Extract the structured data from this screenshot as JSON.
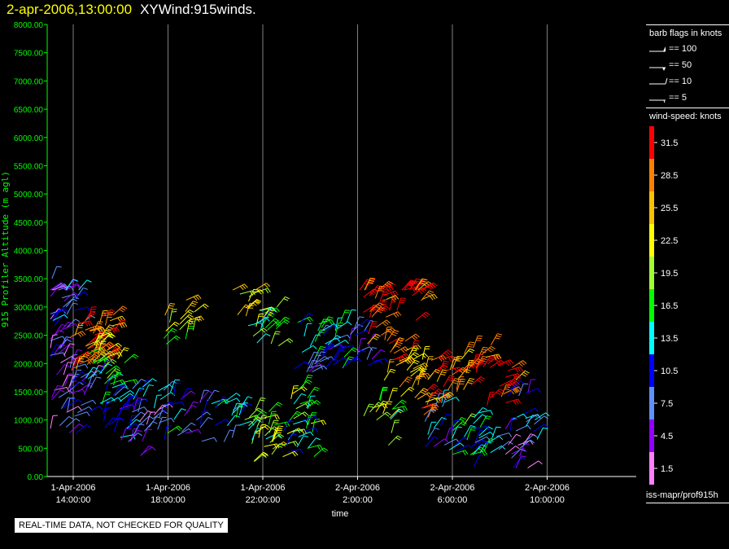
{
  "header": {
    "date_text": "2-apr-2006,13:00:00",
    "title": "XYWind:915winds."
  },
  "chart_data": {
    "type": "scatter",
    "subtype": "wind-barb time-height",
    "ylabel": "915 Profiler Altitude (m agl)",
    "xlabel": "time",
    "ylim": [
      0,
      8000
    ],
    "yticks": [
      "0.00",
      "500.00",
      "1000.00",
      "1500.00",
      "2000.00",
      "2500.00",
      "3000.00",
      "3500.00",
      "4000.00",
      "4500.00",
      "5000.00",
      "5500.00",
      "6000.00",
      "6500.00",
      "7000.00",
      "7500.00",
      "8000.00"
    ],
    "xticks": [
      {
        "date": "1-Apr-2006",
        "time": "14:00:00"
      },
      {
        "date": "1-Apr-2006",
        "time": "18:00:00"
      },
      {
        "date": "1-Apr-2006",
        "time": "22:00:00"
      },
      {
        "date": "2-Apr-2006",
        "time": "2:00:00"
      },
      {
        "date": "2-Apr-2006",
        "time": "6:00:00"
      },
      {
        "date": "2-Apr-2006",
        "time": "10:00:00"
      }
    ],
    "xrange_hours": [
      13,
      25.5
    ],
    "vertical_grid": true,
    "colors": {
      "axis": "#00ff00",
      "grid": "#808080"
    },
    "samples": [
      {
        "t": 13.1,
        "z": 3500,
        "spd": 6
      },
      {
        "t": 13.2,
        "z": 2500,
        "spd": 5
      },
      {
        "t": 13.3,
        "z": 1800,
        "spd": 4
      },
      {
        "t": 13.5,
        "z": 1200,
        "spd": 7
      },
      {
        "t": 13.7,
        "z": 3000,
        "spd": 8
      },
      {
        "t": 14.2,
        "z": 1500,
        "spd": 5
      },
      {
        "t": 14.5,
        "z": 2300,
        "spd": 30
      },
      {
        "t": 14.8,
        "z": 2400,
        "spd": 32
      },
      {
        "t": 15.0,
        "z": 2000,
        "spd": 18
      },
      {
        "t": 15.2,
        "z": 2500,
        "spd": 26
      },
      {
        "t": 15.5,
        "z": 1700,
        "spd": 14
      },
      {
        "t": 15.8,
        "z": 1000,
        "spd": 9
      },
      {
        "t": 16.3,
        "z": 1200,
        "spd": 10
      },
      {
        "t": 17.0,
        "z": 800,
        "spd": 6
      },
      {
        "t": 17.8,
        "z": 1100,
        "spd": 11
      },
      {
        "t": 18.5,
        "z": 2700,
        "spd": 22
      },
      {
        "t": 19.2,
        "z": 1000,
        "spd": 8
      },
      {
        "t": 20.5,
        "z": 900,
        "spd": 12
      },
      {
        "t": 21.4,
        "z": 3100,
        "spd": 21
      },
      {
        "t": 21.6,
        "z": 1000,
        "spd": 17
      },
      {
        "t": 22.0,
        "z": 2700,
        "spd": 15
      },
      {
        "t": 22.3,
        "z": 600,
        "spd": 20
      },
      {
        "t": 23.4,
        "z": 1200,
        "spd": 19
      },
      {
        "t": 23.5,
        "z": 700,
        "spd": 14
      },
      {
        "t": 24.0,
        "z": 2300,
        "spd": 12
      },
      {
        "t": 24.5,
        "z": 2200,
        "spd": 10
      },
      {
        "t": 25.0,
        "z": 2300,
        "spd": 14
      },
      {
        "t": 26.0,
        "z": 2200,
        "spd": 8
      },
      {
        "t": 26.5,
        "z": 3200,
        "spd": 30
      },
      {
        "t": 26.8,
        "z": 1000,
        "spd": 19
      },
      {
        "t": 27.0,
        "z": 2500,
        "spd": 29
      },
      {
        "t": 27.8,
        "z": 2000,
        "spd": 27
      },
      {
        "t": 28.3,
        "z": 3200,
        "spd": 31
      },
      {
        "t": 28.5,
        "z": 1700,
        "spd": 25
      },
      {
        "t": 29.0,
        "z": 1400,
        "spd": 31
      },
      {
        "t": 29.5,
        "z": 900,
        "spd": 9
      },
      {
        "t": 30.0,
        "z": 1800,
        "spd": 27
      },
      {
        "t": 30.5,
        "z": 700,
        "spd": 14
      },
      {
        "t": 31.0,
        "z": 1900,
        "spd": 30
      },
      {
        "t": 31.5,
        "z": 600,
        "spd": 12
      },
      {
        "t": 32.0,
        "z": 1600,
        "spd": 31
      },
      {
        "t": 32.5,
        "z": 400,
        "spd": 5
      },
      {
        "t": 33.0,
        "z": 1100,
        "spd": 9
      }
    ]
  },
  "legend_flags": {
    "title": "barb flags in knots",
    "items": [
      {
        "label": "== 100",
        "kind": "pennant"
      },
      {
        "label": "== 50",
        "kind": "flag"
      },
      {
        "label": "== 10",
        "kind": "barb"
      },
      {
        "label": "== 5",
        "kind": "half"
      }
    ]
  },
  "legend_speed": {
    "title": "wind-speed: knots",
    "labels": [
      "31.5",
      "28.5",
      "25.5",
      "22.5",
      "19.5",
      "16.5",
      "13.5",
      "10.5",
      "7.5",
      "4.5",
      "1.5"
    ],
    "colors": [
      "#ff0000",
      "#ff8000",
      "#ffc000",
      "#ffff00",
      "#a0ff30",
      "#00ff00",
      "#00ffff",
      "#0000ff",
      "#6090ff",
      "#9000ff",
      "#ff80ff"
    ]
  },
  "source": "iss-mapr/prof915h",
  "notice": "REAL-TIME DATA, NOT CHECKED FOR QUALITY"
}
